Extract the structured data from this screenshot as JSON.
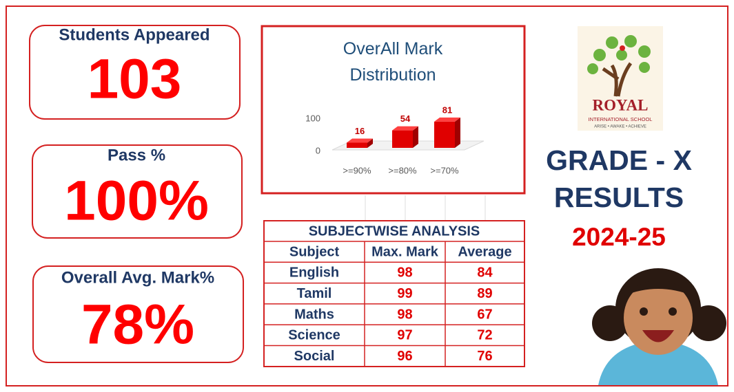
{
  "cards": [
    {
      "label": "Students Appeared",
      "value": "103"
    },
    {
      "label": "Pass %",
      "value": "100%"
    },
    {
      "label": "Overall Avg. Mark%",
      "value": "78%"
    }
  ],
  "chart_data": {
    "type": "bar",
    "title": "OverAll Mark Distribution",
    "categories": [
      ">=90%",
      ">=80%",
      ">=70%"
    ],
    "values": [
      16,
      54,
      81
    ],
    "color": "#e00000",
    "ylim": [
      0,
      100
    ],
    "yticks": [
      0,
      100
    ]
  },
  "table": {
    "title": "SUBJECTWISE ANALYSIS",
    "header": [
      "Subject",
      "Max. Mark",
      "Average"
    ],
    "rows": [
      [
        "English",
        "98",
        "84"
      ],
      [
        "Tamil",
        "99",
        "89"
      ],
      [
        "Maths",
        "98",
        "67"
      ],
      [
        "Science",
        "97",
        "72"
      ],
      [
        "Social",
        "96",
        "76"
      ]
    ]
  },
  "logo": {
    "name": "ROYAL",
    "subtitle": "INTERNATIONAL SCHOOL",
    "motto": "ARISE • AWAKE • ACHIEVE"
  },
  "heading": {
    "line1": "GRADE - X",
    "line2": "RESULTS",
    "year": "2024-25"
  }
}
